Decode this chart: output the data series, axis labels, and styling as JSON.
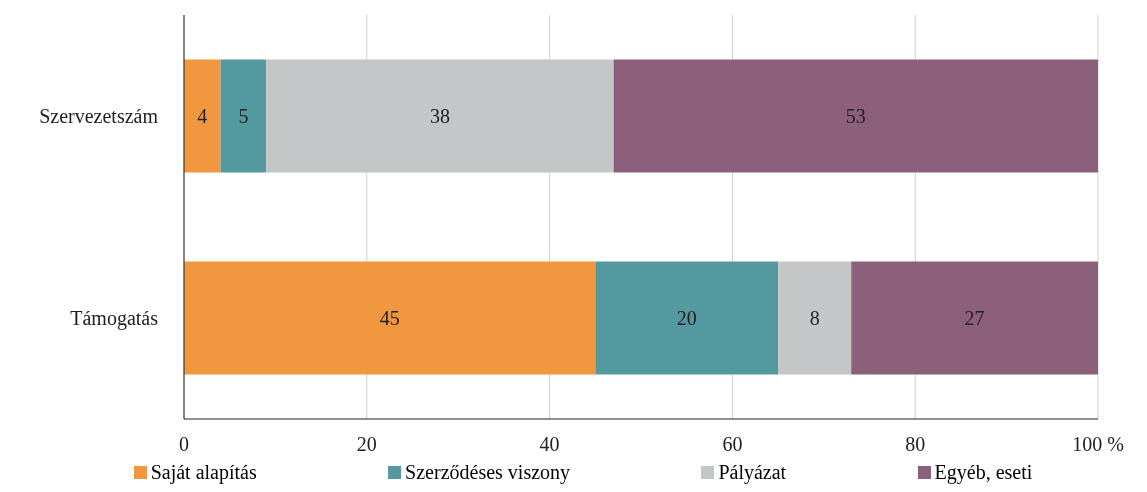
{
  "chart_data": {
    "type": "bar",
    "orientation": "horizontal",
    "stacked": true,
    "categories": [
      "Szervezetszám",
      "Támogatás"
    ],
    "series": [
      {
        "name": "Saját alapítás",
        "color": "#f0973f",
        "values": [
          4,
          45
        ]
      },
      {
        "name": "Szerződéses viszony",
        "color": "#5599a0",
        "values": [
          5,
          20
        ]
      },
      {
        "name": "Pályázat",
        "color": "#c5c6c8",
        "values": [
          38,
          8
        ]
      },
      {
        "name": "Egyéb, eseti",
        "color": "#8c5f7b",
        "values": [
          53,
          27
        ]
      }
    ],
    "xlim": [
      0,
      100
    ],
    "xticks": [
      0,
      20,
      40,
      60,
      80,
      {
        "value": 100,
        "label": "100 %"
      }
    ],
    "grid": "x",
    "legend": "bottom",
    "data_labels": true
  }
}
